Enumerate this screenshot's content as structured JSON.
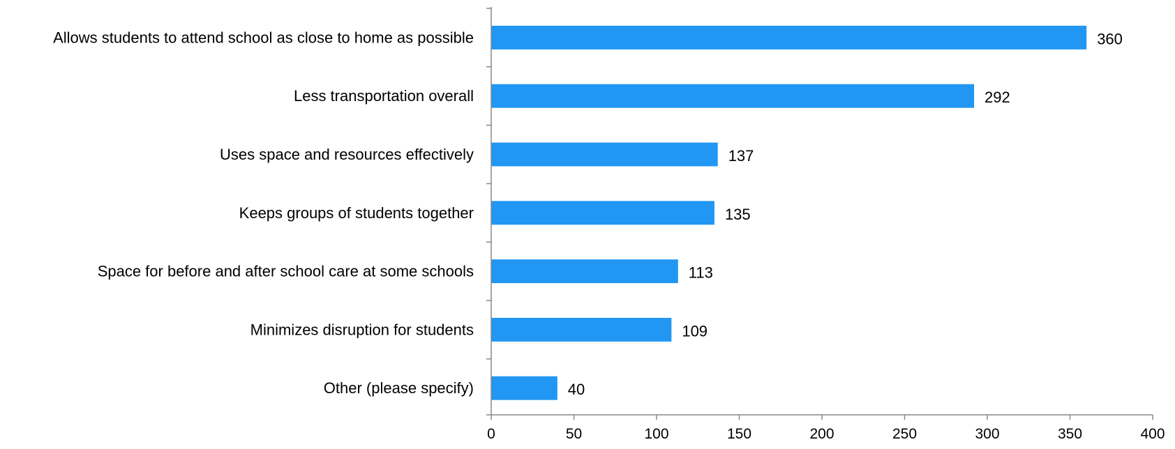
{
  "chart_data": {
    "type": "bar",
    "orientation": "horizontal",
    "categories": [
      "Allows students to attend school as close to home as possible",
      "Less transportation overall",
      "Uses space and resources effectively",
      "Keeps groups of students together",
      "Space for before and after school care at some schools",
      "Minimizes disruption for students",
      "Other (please specify)"
    ],
    "values": [
      360,
      292,
      137,
      135,
      113,
      109,
      40
    ],
    "xlim": [
      0,
      400
    ],
    "xticks": [
      0,
      50,
      100,
      150,
      200,
      250,
      300,
      350,
      400
    ],
    "title": "",
    "xlabel": "",
    "ylabel": "",
    "grid": false,
    "legend": "none",
    "data_labels": true,
    "bar_color": "#2196f3"
  }
}
